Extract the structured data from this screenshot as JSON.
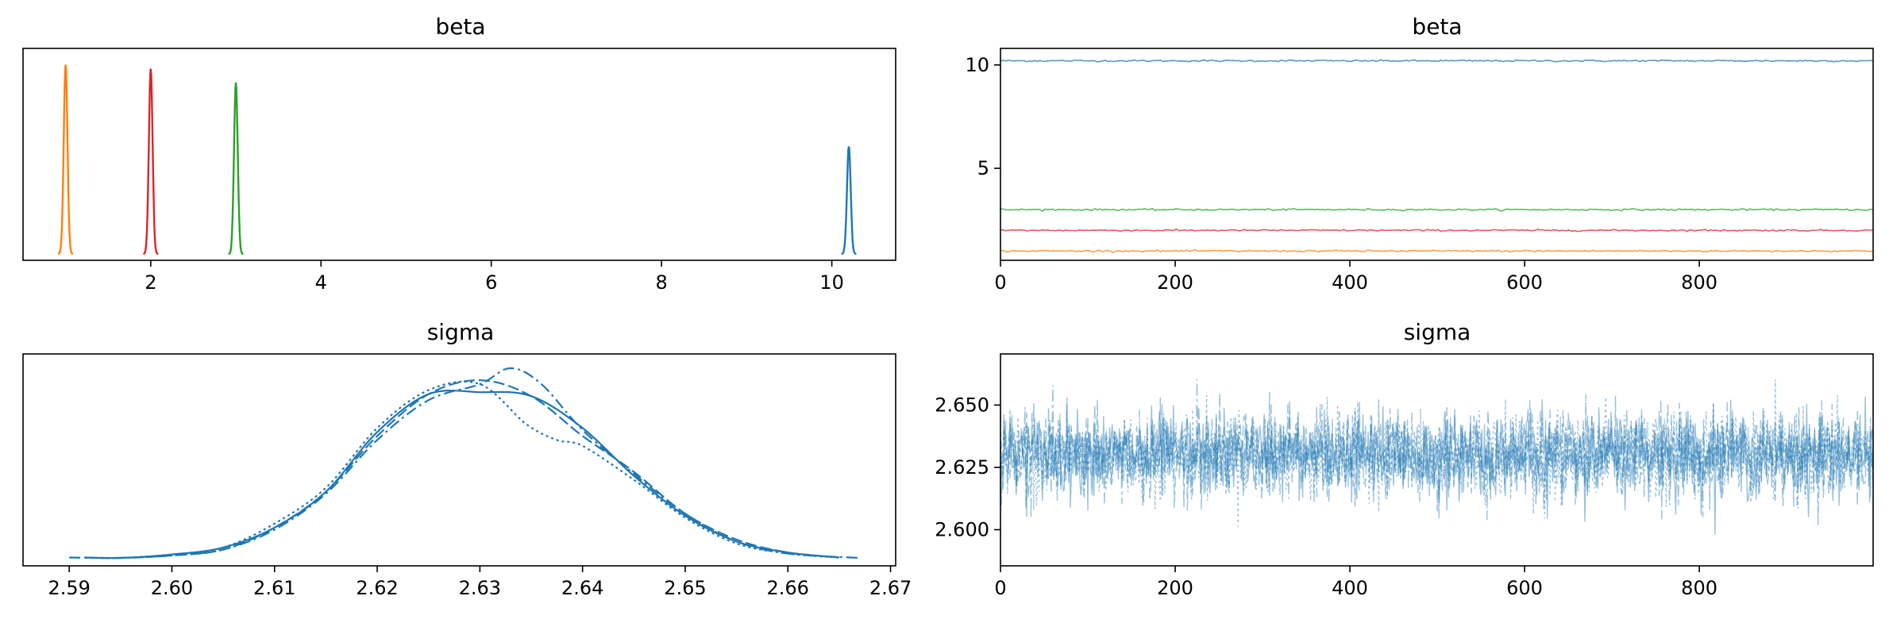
{
  "chart_data": [
    {
      "id": "beta_density",
      "type": "line",
      "title": "beta",
      "xlim": [
        0.5,
        10.75
      ],
      "x_ticks": [
        2,
        4,
        6,
        8,
        10
      ],
      "x_tick_labels": [
        "2",
        "4",
        "6",
        "8",
        "10"
      ],
      "y_ticks_shown": false,
      "series": [
        {
          "color": "#ff7f0e",
          "center": 1.0,
          "peak": 0.95
        },
        {
          "color": "#d62728",
          "center": 2.0,
          "peak": 0.93
        },
        {
          "color": "#2ca02c",
          "center": 3.0,
          "peak": 0.86
        },
        {
          "color": "#1f77b4",
          "center": 10.2,
          "peak": 0.54
        }
      ]
    },
    {
      "id": "beta_trace",
      "type": "line",
      "title": "beta",
      "xlim": [
        0,
        999
      ],
      "ylim": [
        0.55,
        10.8
      ],
      "x_ticks": [
        0,
        200,
        400,
        600,
        800
      ],
      "x_tick_labels": [
        "0",
        "200",
        "400",
        "600",
        "800"
      ],
      "y_ticks": [
        5,
        10
      ],
      "y_tick_labels": [
        "5",
        "10"
      ],
      "series": [
        {
          "color": "#1f77b4",
          "value": 10.2
        },
        {
          "color": "#2ca02c",
          "value": 3.0
        },
        {
          "color": "#d62728",
          "value": 2.0
        },
        {
          "color": "#ff7f0e",
          "value": 1.0
        }
      ]
    },
    {
      "id": "sigma_density",
      "type": "line",
      "title": "sigma",
      "xlim": [
        2.5855,
        2.6705
      ],
      "x_ticks": [
        2.59,
        2.6,
        2.61,
        2.62,
        2.63,
        2.64,
        2.65,
        2.66,
        2.67
      ],
      "x_tick_labels": [
        "2.59",
        "2.60",
        "2.61",
        "2.62",
        "2.63",
        "2.64",
        "2.65",
        "2.66",
        "2.67"
      ],
      "y_ticks_shown": false,
      "color": "#1f77b4",
      "series": [
        {
          "line_style": "solid",
          "points": [
            [
              2.5915,
              0.01
            ],
            [
              2.595,
              0.008
            ],
            [
              2.6,
              0.025
            ],
            [
              2.605,
              0.06
            ],
            [
              2.61,
              0.16
            ],
            [
              2.615,
              0.34
            ],
            [
              2.62,
              0.64
            ],
            [
              2.625,
              0.83
            ],
            [
              2.63,
              0.84
            ],
            [
              2.635,
              0.82
            ],
            [
              2.64,
              0.66
            ],
            [
              2.645,
              0.42
            ],
            [
              2.65,
              0.22
            ],
            [
              2.655,
              0.09
            ],
            [
              2.66,
              0.035
            ],
            [
              2.665,
              0.01
            ]
          ]
        },
        {
          "line_style": "dashed",
          "points": [
            [
              2.5915,
              0.01
            ],
            [
              2.595,
              0.008
            ],
            [
              2.6,
              0.02
            ],
            [
              2.605,
              0.05
            ],
            [
              2.61,
              0.16
            ],
            [
              2.615,
              0.34
            ],
            [
              2.62,
              0.62
            ],
            [
              2.625,
              0.83
            ],
            [
              2.63,
              0.9
            ],
            [
              2.635,
              0.82
            ],
            [
              2.64,
              0.62
            ],
            [
              2.645,
              0.44
            ],
            [
              2.65,
              0.23
            ],
            [
              2.655,
              0.1
            ],
            [
              2.66,
              0.035
            ],
            [
              2.665,
              0.01
            ]
          ]
        },
        {
          "line_style": "dotted",
          "points": [
            [
              2.5915,
              0.01
            ],
            [
              2.595,
              0.008
            ],
            [
              2.6,
              0.025
            ],
            [
              2.605,
              0.06
            ],
            [
              2.61,
              0.18
            ],
            [
              2.615,
              0.36
            ],
            [
              2.62,
              0.66
            ],
            [
              2.625,
              0.85
            ],
            [
              2.63,
              0.88
            ],
            [
              2.6345,
              0.68
            ],
            [
              2.6375,
              0.6
            ],
            [
              2.64,
              0.57
            ],
            [
              2.645,
              0.4
            ],
            [
              2.65,
              0.21
            ],
            [
              2.655,
              0.08
            ],
            [
              2.66,
              0.03
            ],
            [
              2.665,
              0.01
            ]
          ]
        },
        {
          "line_style": "dashdot",
          "points": [
            [
              2.59,
              0.01
            ],
            [
              2.595,
              0.008
            ],
            [
              2.6,
              0.02
            ],
            [
              2.605,
              0.05
            ],
            [
              2.61,
              0.15
            ],
            [
              2.615,
              0.33
            ],
            [
              2.62,
              0.6
            ],
            [
              2.625,
              0.8
            ],
            [
              2.63,
              0.88
            ],
            [
              2.633,
              0.96
            ],
            [
              2.636,
              0.88
            ],
            [
              2.64,
              0.65
            ],
            [
              2.645,
              0.43
            ],
            [
              2.65,
              0.23
            ],
            [
              2.655,
              0.09
            ],
            [
              2.66,
              0.03
            ],
            [
              2.667,
              0.008
            ]
          ]
        }
      ]
    },
    {
      "id": "sigma_trace",
      "type": "line",
      "title": "sigma",
      "xlim": [
        0,
        999
      ],
      "ylim": [
        2.5855,
        2.6705
      ],
      "x_ticks": [
        0,
        200,
        400,
        600,
        800
      ],
      "x_tick_labels": [
        "0",
        "200",
        "400",
        "600",
        "800"
      ],
      "y_ticks": [
        2.6,
        2.625,
        2.65
      ],
      "y_tick_labels": [
        "2.600",
        "2.625",
        "2.650"
      ],
      "color": "#1f77b4",
      "center": 2.63,
      "spread": 0.0085,
      "n_draws": 1000,
      "n_chains": 4
    }
  ]
}
